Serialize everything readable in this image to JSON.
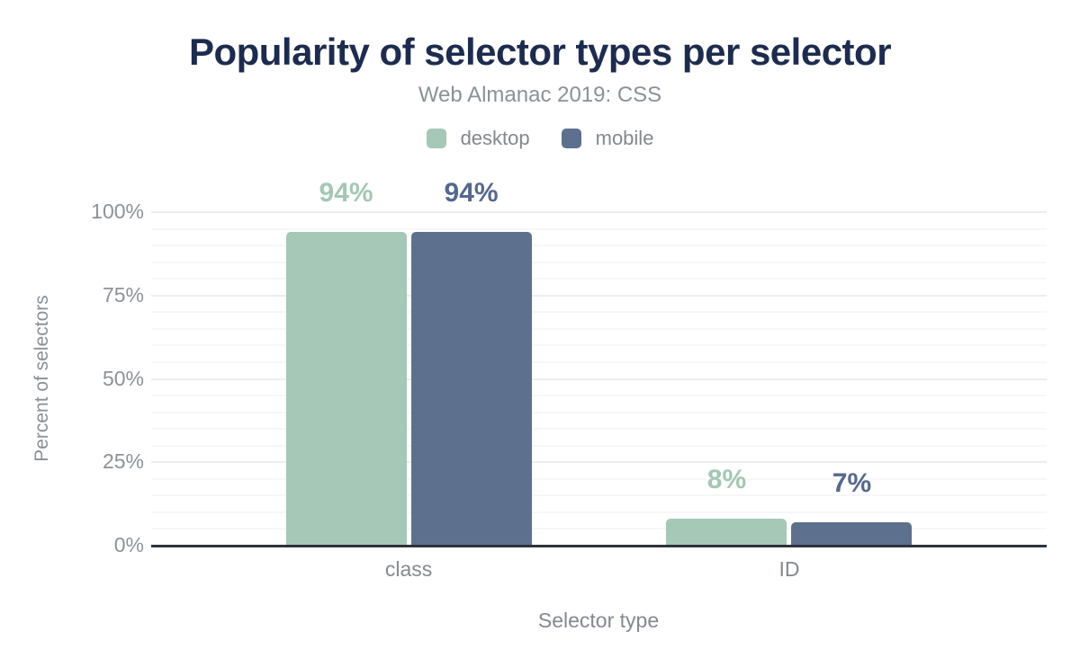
{
  "chart_data": {
    "type": "bar",
    "title": "Popularity of selector types per selector",
    "subtitle": "Web Almanac 2019: CSS",
    "categories": [
      "class",
      "ID"
    ],
    "series": [
      {
        "name": "desktop",
        "color": "#a6c8b6",
        "label_color": "#a3c7b4",
        "values": [
          94,
          8
        ],
        "labels": [
          "94%",
          "8%"
        ]
      },
      {
        "name": "mobile",
        "color": "#5d708d",
        "label_color": "#55688d",
        "values": [
          94,
          7
        ],
        "labels": [
          "94%",
          "7%"
        ]
      }
    ],
    "xlabel": "Selector type",
    "ylabel": "Percent of selectors",
    "ylim": [
      0,
      100
    ],
    "y_ticks": [
      {
        "value": 0,
        "label": "0%"
      },
      {
        "value": 25,
        "label": "25%"
      },
      {
        "value": 50,
        "label": "50%"
      },
      {
        "value": 75,
        "label": "75%"
      },
      {
        "value": 100,
        "label": "100%"
      }
    ],
    "grid": {
      "major_every": 25,
      "minor_every": 5,
      "visible": true
    },
    "legend_position": "top",
    "colors": {
      "background": "#ffffff",
      "title": "#1d2c4e",
      "subtitle": "#8b9196",
      "axis_text": "#8d9298",
      "axis_line": "#2e333c",
      "grid_major": "#ededf0",
      "grid_minor": "#f7f7f9"
    }
  }
}
